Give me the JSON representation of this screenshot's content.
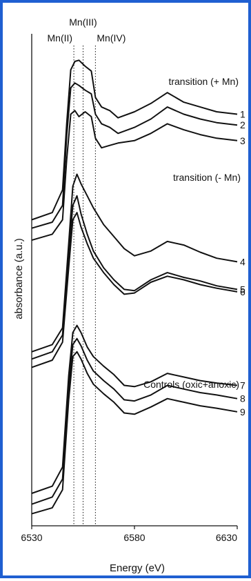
{
  "chart_data": {
    "type": "line",
    "xlabel": "Energy (eV)",
    "ylabel": "absorbance (a.u.)",
    "xlim": [
      6530,
      6630
    ],
    "x_ticks": [
      "6530",
      "6580",
      "6630"
    ],
    "reference_lines": [
      {
        "label": "Mn(II)",
        "x": 6550.5
      },
      {
        "label": "Mn(III)",
        "x": 6555.0
      },
      {
        "label": "Mn(IV)",
        "x": 6561.0
      }
    ],
    "groups": [
      "transition (+ Mn)",
      "transition (- Mn)",
      "Controls (oxic+anoxic)"
    ],
    "series": [
      {
        "name": "1",
        "x": [
          6530,
          6540,
          6545,
          6547,
          6549,
          6551,
          6553,
          6556,
          6559,
          6561,
          6564,
          6568,
          6572,
          6580,
          6588,
          6596,
          6604,
          6612,
          6620,
          6630
        ],
        "y": [
          2.5,
          2.56,
          2.75,
          3.3,
          3.75,
          3.82,
          3.83,
          3.78,
          3.74,
          3.52,
          3.44,
          3.41,
          3.35,
          3.4,
          3.47,
          3.56,
          3.48,
          3.44,
          3.4,
          3.38
        ]
      },
      {
        "name": "2",
        "x": [
          6530,
          6540,
          6545,
          6547,
          6549,
          6551,
          6553,
          6556,
          6559,
          6561,
          6564,
          6568,
          6572,
          6580,
          6588,
          6596,
          6604,
          6612,
          6620,
          6630
        ],
        "y": [
          2.43,
          2.48,
          2.62,
          3.2,
          3.6,
          3.64,
          3.62,
          3.58,
          3.55,
          3.38,
          3.3,
          3.27,
          3.22,
          3.27,
          3.34,
          3.44,
          3.38,
          3.34,
          3.31,
          3.29
        ]
      },
      {
        "name": "3",
        "x": [
          6530,
          6540,
          6545,
          6547,
          6549,
          6551,
          6553,
          6556,
          6559,
          6561,
          6564,
          6568,
          6572,
          6580,
          6588,
          6596,
          6604,
          6612,
          6620,
          6630
        ],
        "y": [
          2.33,
          2.38,
          2.5,
          3.0,
          3.38,
          3.41,
          3.36,
          3.4,
          3.36,
          3.18,
          3.1,
          3.12,
          3.14,
          3.16,
          3.22,
          3.3,
          3.25,
          3.21,
          3.18,
          3.16
        ]
      },
      {
        "name": "4",
        "x": [
          6530,
          6540,
          6545,
          6548,
          6550,
          6552,
          6554,
          6557,
          6560,
          6565,
          6570,
          6575,
          6580,
          6588,
          6596,
          6604,
          6612,
          6620,
          6630
        ],
        "y": [
          1.4,
          1.46,
          1.6,
          2.3,
          2.78,
          2.88,
          2.8,
          2.7,
          2.6,
          2.46,
          2.36,
          2.26,
          2.2,
          2.24,
          2.32,
          2.29,
          2.23,
          2.18,
          2.15
        ]
      },
      {
        "name": "5",
        "x": [
          6530,
          6540,
          6545,
          6548,
          6550,
          6552,
          6554,
          6557,
          6560,
          6565,
          6570,
          6575,
          6580,
          6588,
          6596,
          6604,
          6612,
          6620,
          6630
        ],
        "y": [
          1.34,
          1.4,
          1.54,
          2.22,
          2.62,
          2.7,
          2.55,
          2.38,
          2.24,
          2.1,
          2.0,
          1.92,
          1.91,
          2.0,
          2.06,
          2.02,
          1.99,
          1.95,
          1.92
        ]
      },
      {
        "name": "6",
        "x": [
          6530,
          6540,
          6545,
          6548,
          6550,
          6552,
          6554,
          6557,
          6560,
          6565,
          6570,
          6575,
          6580,
          6588,
          6596,
          6604,
          6612,
          6620,
          6630
        ],
        "y": [
          1.27,
          1.33,
          1.48,
          2.1,
          2.5,
          2.56,
          2.44,
          2.3,
          2.18,
          2.06,
          1.96,
          1.88,
          1.89,
          1.98,
          2.03,
          2.0,
          1.96,
          1.93,
          1.9
        ]
      },
      {
        "name": "7",
        "x": [
          6530,
          6540,
          6545,
          6548,
          6550,
          6552,
          6554,
          6557,
          6560,
          6565,
          6570,
          6575,
          6580,
          6588,
          6596,
          6604,
          6612,
          6620,
          6630
        ],
        "y": [
          0.22,
          0.28,
          0.44,
          1.2,
          1.56,
          1.62,
          1.56,
          1.44,
          1.36,
          1.28,
          1.21,
          1.12,
          1.11,
          1.15,
          1.22,
          1.19,
          1.16,
          1.14,
          1.12
        ]
      },
      {
        "name": "8",
        "x": [
          6530,
          6540,
          6545,
          6548,
          6550,
          6552,
          6554,
          6557,
          6560,
          6565,
          6570,
          6575,
          6580,
          6588,
          6596,
          6604,
          6612,
          6620,
          6630
        ],
        "y": [
          0.13,
          0.19,
          0.34,
          1.1,
          1.46,
          1.51,
          1.45,
          1.33,
          1.24,
          1.16,
          1.09,
          1.0,
          0.99,
          1.04,
          1.12,
          1.09,
          1.06,
          1.04,
          1.01
        ]
      },
      {
        "name": "9",
        "x": [
          6530,
          6540,
          6545,
          6548,
          6550,
          6552,
          6554,
          6557,
          6560,
          6565,
          6570,
          6575,
          6580,
          6588,
          6596,
          6604,
          6612,
          6620,
          6630
        ],
        "y": [
          0.05,
          0.1,
          0.25,
          1.0,
          1.36,
          1.4,
          1.34,
          1.22,
          1.13,
          1.05,
          0.98,
          0.89,
          0.88,
          0.94,
          1.01,
          0.98,
          0.95,
          0.93,
          0.9
        ]
      }
    ],
    "grid": false,
    "legend": "none",
    "colors": {
      "frame": "#1f5fd1",
      "lines": "#111111"
    }
  }
}
